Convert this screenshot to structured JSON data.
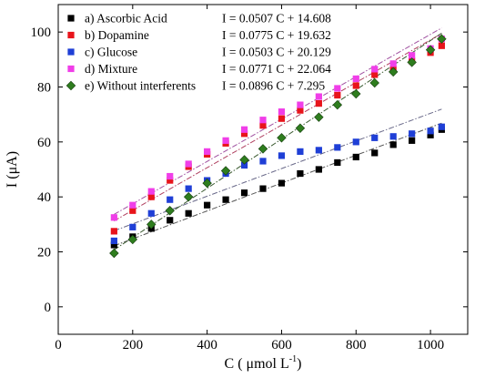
{
  "chart_data": {
    "type": "scatter",
    "title": "",
    "xlabel": "C ( μmol L",
    "xlabel_sup": "-1",
    "xlabel_close": ")",
    "ylabel": "I (μA)",
    "xlim": [
      0,
      1100
    ],
    "ylim": [
      -10,
      110
    ],
    "x_ticks": [
      0,
      200,
      400,
      600,
      800,
      1000
    ],
    "y_ticks": [
      0,
      20,
      40,
      60,
      80,
      100
    ],
    "grid": false,
    "legend_position": "top-left",
    "x": [
      150,
      200,
      250,
      300,
      350,
      400,
      450,
      500,
      550,
      600,
      650,
      700,
      750,
      800,
      850,
      900,
      950,
      1000,
      1030
    ],
    "series": [
      {
        "name": "a) Ascorbic Acid",
        "equation": "I = 0.0507 C + 14.608",
        "marker": "square",
        "color": "#000000",
        "fit_color": "#555555",
        "slope": 0.0507,
        "intercept": 14.608,
        "values": [
          22.5,
          25.5,
          28.5,
          31.5,
          34.0,
          37.0,
          39.0,
          41.5,
          43.0,
          45.0,
          48.5,
          50.0,
          52.5,
          54.5,
          56.0,
          59.0,
          60.5,
          62.5,
          64.5
        ]
      },
      {
        "name": "b) Dopamine",
        "equation": "I = 0.0775 C + 19.632",
        "marker": "square",
        "color": "#e8141b",
        "fit_color": "#b04060",
        "slope": 0.0775,
        "intercept": 19.632,
        "values": [
          27.5,
          35.0,
          40.0,
          46.0,
          51.0,
          55.5,
          59.5,
          63.0,
          66.0,
          68.5,
          71.5,
          74.0,
          77.0,
          80.5,
          84.5,
          86.5,
          89.5,
          92.5,
          95.0
        ]
      },
      {
        "name": "c) Glucose",
        "equation": "I = 0.0503 C + 20.129",
        "marker": "square",
        "color": "#1f3fd6",
        "fit_color": "#6a6a8a",
        "slope": 0.0503,
        "intercept": 20.129,
        "values": [
          24.0,
          29.0,
          34.0,
          39.0,
          43.0,
          46.0,
          48.5,
          51.5,
          53.0,
          55.0,
          56.5,
          57.0,
          58.0,
          60.0,
          61.5,
          62.0,
          63.0,
          64.0,
          65.5
        ]
      },
      {
        "name": "d) Mixture",
        "equation": "I = 0.0771 C + 22.064",
        "marker": "square",
        "color": "#f03ee8",
        "fit_color": "#a050a0",
        "slope": 0.0771,
        "intercept": 22.064,
        "values": [
          32.5,
          37.0,
          42.0,
          47.5,
          52.0,
          56.5,
          60.5,
          64.5,
          68.0,
          71.0,
          73.5,
          76.5,
          79.5,
          83.0,
          86.5,
          88.5,
          91.5,
          94.0,
          97.5
        ]
      },
      {
        "name": "e) Without interferents",
        "equation": "I = 0.0896 C + 7.295",
        "marker": "diamond",
        "color": "#2e7d1e",
        "fit_color": "#3a5a30",
        "slope": 0.0896,
        "intercept": 7.295,
        "values": [
          19.5,
          24.5,
          30.0,
          35.0,
          40.0,
          45.0,
          49.5,
          53.5,
          57.5,
          61.5,
          65.0,
          69.0,
          73.5,
          77.5,
          81.5,
          85.5,
          89.0,
          93.5,
          97.5
        ]
      }
    ]
  }
}
